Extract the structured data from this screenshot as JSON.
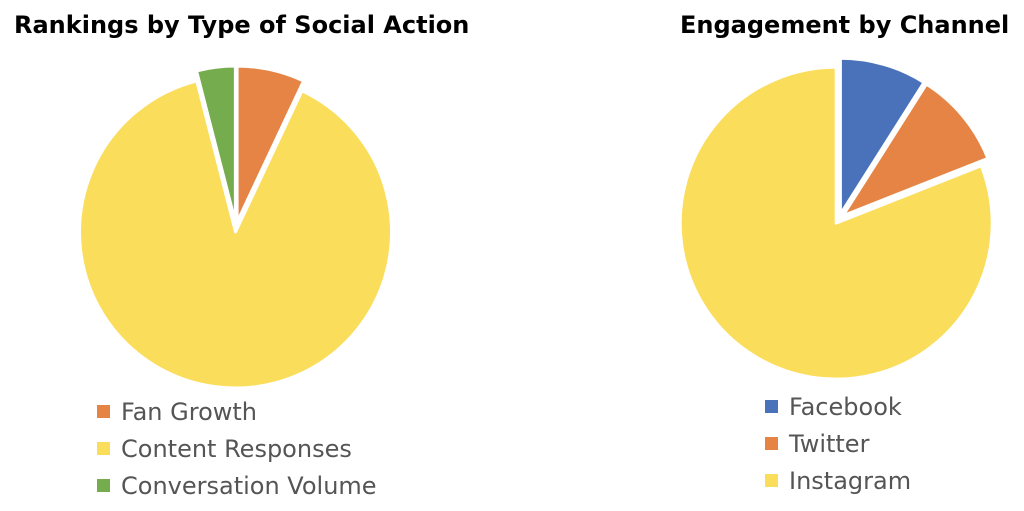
{
  "chart_data": [
    {
      "type": "pie",
      "title": "Rankings by Type of Social Action",
      "categories": [
        "Fan Growth",
        "Content Responses",
        "Conversation Volume"
      ],
      "values": [
        7,
        89,
        4
      ],
      "colors": [
        "#E58445",
        "#FBDD5C",
        "#75AC4E"
      ],
      "legend_position": "bottom",
      "start_angle": "12 o'clock, clockwise",
      "exploded": "all slices"
    },
    {
      "type": "pie",
      "title": "Engagement by Channel",
      "categories": [
        "Facebook",
        "Twitter",
        "Instagram"
      ],
      "values": [
        9,
        10,
        81
      ],
      "colors": [
        "#4A72BA",
        "#E58445",
        "#FBDD5C"
      ],
      "legend_position": "bottom",
      "start_angle": "12 o'clock, clockwise",
      "exploded": "all slices"
    }
  ]
}
